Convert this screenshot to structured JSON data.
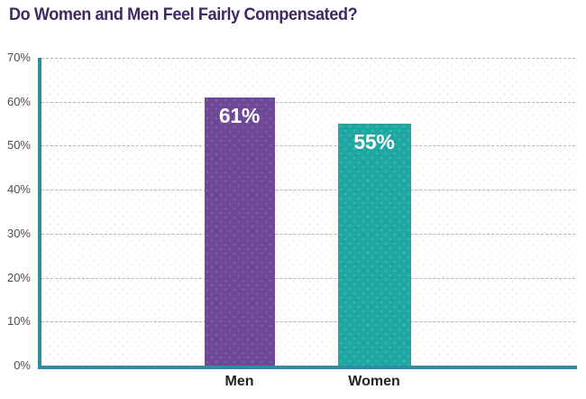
{
  "title": {
    "text": "Do Women and Men Feel Fairly Compensated?",
    "color": "#3E2963"
  },
  "chart_data": {
    "type": "bar",
    "title": "Do Women and Men Feel Fairly Compensated?",
    "categories": [
      "Men",
      "Women"
    ],
    "values": [
      61,
      55
    ],
    "value_labels": [
      "61%",
      "55%"
    ],
    "bar_colors": [
      "#6C4896",
      "#1EA7A2"
    ],
    "bar_dot_colors": [
      "#7F5CA8",
      "#3FB5B0"
    ],
    "xlabel": "",
    "ylabel": "",
    "ylim": [
      0,
      70
    ],
    "ytick_values": [
      0,
      10,
      20,
      30,
      40,
      50,
      60,
      70
    ],
    "ytick_labels": [
      "0%",
      "10%",
      "20%",
      "30%",
      "40%",
      "50%",
      "60%",
      "70%"
    ],
    "grid": "horizontal-dashed",
    "legend": "none",
    "colors": {
      "axis": "#2E8D9C",
      "gridline": "#B1B5BB",
      "ytick_text": "#4A4E53",
      "xtick_text": "#222226",
      "value_text": "#FFFFFF",
      "title_text": "#3E2963",
      "background": "#FFFFFF"
    }
  }
}
